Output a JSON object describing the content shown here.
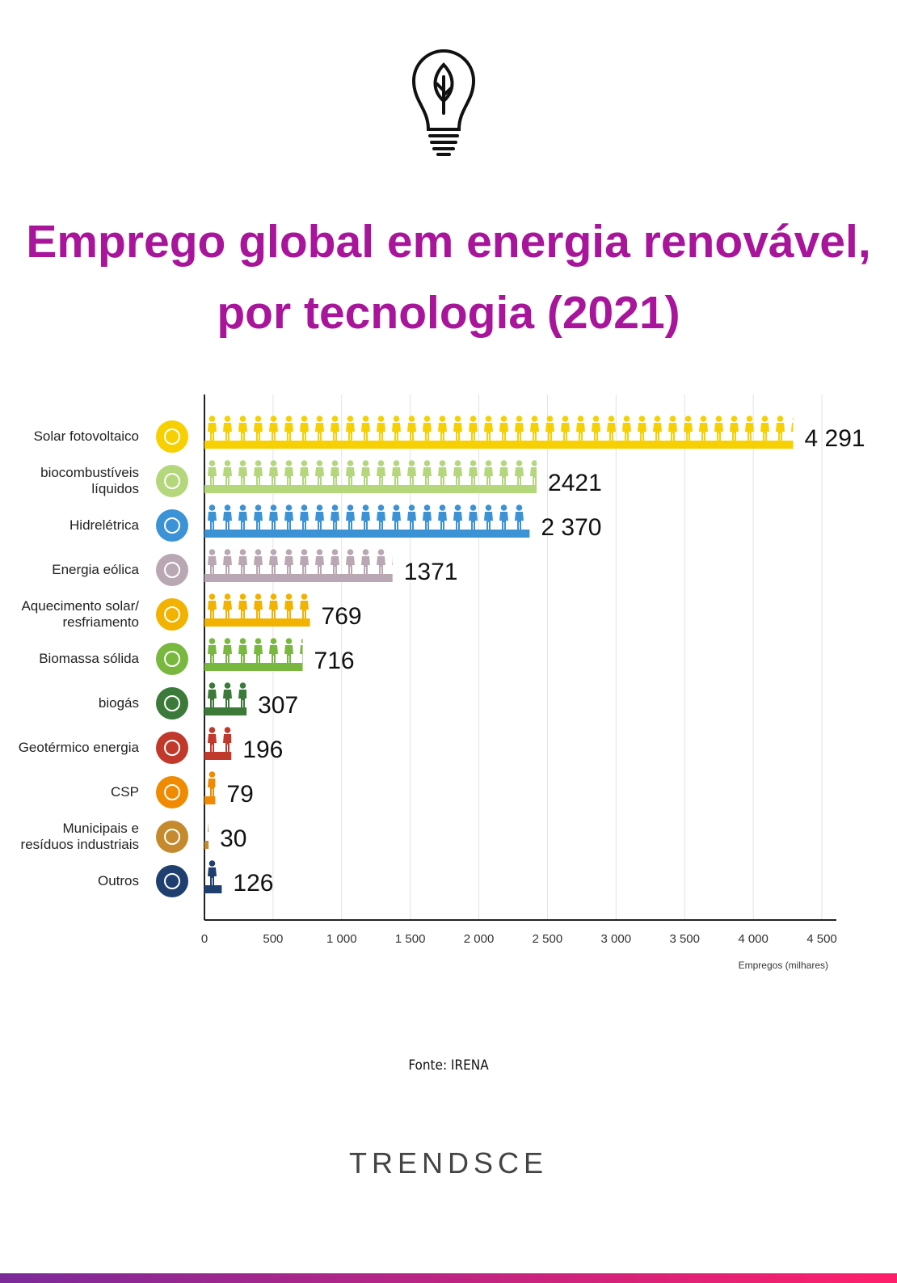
{
  "chart_data": {
    "type": "bar",
    "orientation": "horizontal",
    "title": "Emprego global em energia renovável, por tecnologia (2021)",
    "x_label": "Empregos (milhares)",
    "categories": [
      "Solar fotovoltaico",
      "biocombustíveis líquidos",
      "Hidrelétrica",
      "Energia eólica",
      "Aquecimento solar/ resfriamento",
      "Biomassa sólida",
      "biogás",
      "Geotérmico energia",
      "CSP",
      "Municipais e resíduos industriais",
      "Outros"
    ],
    "values": [
      4291,
      2421,
      2370,
      1371,
      769,
      716,
      307,
      196,
      79,
      30,
      126
    ],
    "value_labels": [
      "4 291",
      "2421",
      "2 370",
      "1371",
      "769",
      "716",
      "307",
      "196",
      "79",
      "30",
      "126"
    ],
    "colors": [
      "#f6d000",
      "#b5d77c",
      "#3b93d6",
      "#b9a8b3",
      "#f2b300",
      "#79b83e",
      "#3c7a3a",
      "#c0392b",
      "#f08a00",
      "#c58a2e",
      "#1f3f6e"
    ],
    "xlim": [
      0,
      4500
    ],
    "xticks": [
      0,
      500,
      {
        "value": 1000,
        "label": "1 000"
      },
      {
        "value": 1500,
        "label": "1 500"
      },
      {
        "value": 2000,
        "label": "2 000"
      },
      {
        "value": 2500,
        "label": "2 500"
      },
      {
        "value": 3000,
        "label": "3 000"
      },
      {
        "value": 3500,
        "label": "3 500"
      },
      {
        "value": 4000,
        "label": "4 000"
      },
      {
        "value": 4500,
        "label": "4 500"
      }
    ],
    "grid": true
  },
  "source": "Fonte: IRENA",
  "brand": "TRENDSCE"
}
